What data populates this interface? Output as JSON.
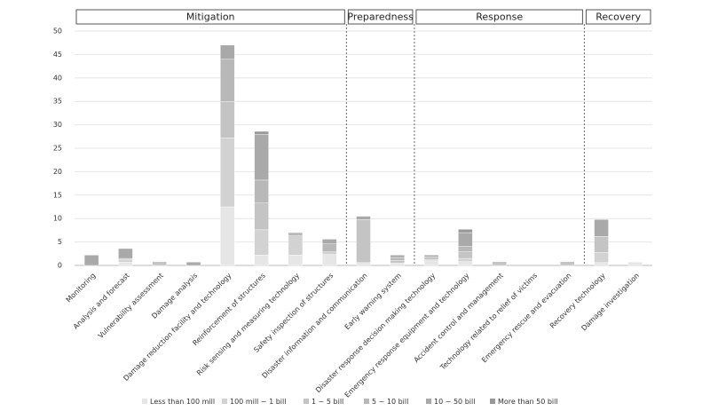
{
  "chart_data": {
    "type": "bar",
    "stacked": true,
    "groups": [
      {
        "name": "Mitigation",
        "categories": [
          "Monitoring",
          "Analysis and forecast",
          "Vulnerability assessment",
          "Damage analysis",
          "Damage reduction facility and technology",
          "Reinforcement of structures",
          "Risk sensing and measuring technology",
          "Safety inspection of structures"
        ]
      },
      {
        "name": "Preparedness",
        "categories": [
          "Disaster information and communication",
          "Early warning system"
        ]
      },
      {
        "name": "Response",
        "categories": [
          "Disaster response decision making technology",
          "Emergency response equipment and technology",
          "Accident control and management",
          "Technology related to relief of victims",
          "Emergency rescue and evacuation"
        ]
      },
      {
        "name": "Recovery",
        "categories": [
          "Recovery technology",
          "Damage investigation"
        ]
      }
    ],
    "series": [
      {
        "name": "Less than 100 mill",
        "color": "#e6e6e6",
        "values": [
          0,
          0.7,
          0,
          0,
          12.5,
          2.2,
          2.2,
          2.3,
          0.6,
          0.5,
          1.2,
          0.8,
          0,
          0,
          0,
          0.6,
          0.7
        ]
      },
      {
        "name": "100 mill ~ 1 bill",
        "color": "#d2d2d2",
        "values": [
          0,
          0.5,
          0,
          0,
          14.7,
          5.4,
          4.1,
          0.6,
          0,
          0,
          0,
          0.7,
          0,
          0,
          0,
          2.2,
          0
        ]
      },
      {
        "name": "1 ~ 5 bill",
        "color": "#c4c4c4",
        "values": [
          0,
          0.3,
          0.8,
          0,
          7.8,
          5.7,
          0,
          0,
          9.2,
          0.6,
          0.6,
          1.4,
          0.8,
          0,
          0.8,
          3.4,
          0
        ]
      },
      {
        "name": "5 ~ 10 bill",
        "color": "#b8b8b8",
        "values": [
          0,
          0,
          0,
          0,
          9.0,
          4.9,
          0.7,
          1.7,
          0,
          0.6,
          0,
          1.2,
          0,
          0,
          0,
          0,
          0
        ]
      },
      {
        "name": "10 ~ 50 bill",
        "color": "#a9a9a9",
        "values": [
          2.2,
          2.1,
          0,
          0.7,
          3.0,
          9.8,
          0,
          1.0,
          0.7,
          0.5,
          0.4,
          2.9,
          0,
          0,
          0,
          3.6,
          0
        ]
      },
      {
        "name": "More than 50 bill",
        "color": "#989898",
        "values": [
          0,
          0,
          0,
          0,
          0,
          0.6,
          0,
          0,
          0,
          0,
          0,
          0.7,
          0,
          0,
          0,
          0,
          0
        ]
      }
    ],
    "ylim": [
      0,
      50
    ],
    "yticks": [
      0,
      5,
      10,
      15,
      20,
      25,
      30,
      35,
      40,
      45,
      50
    ],
    "grid": true
  }
}
